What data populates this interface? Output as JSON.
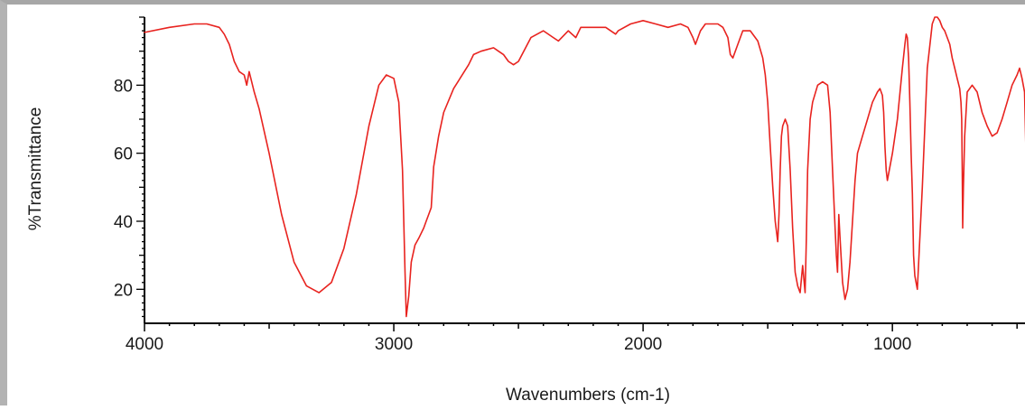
{
  "chart_data": {
    "type": "line",
    "title": "",
    "xlabel": "Wavenumbers (cm-1)",
    "ylabel": "%Transmittance",
    "xlim": [
      4000,
      450
    ],
    "ylim": [
      10,
      100
    ],
    "x_ticks": [
      4000,
      3000,
      2000,
      1000
    ],
    "y_ticks": [
      20,
      40,
      60,
      80
    ],
    "x_tick_labels": [
      "4000",
      "3000",
      "2000",
      "1000"
    ],
    "y_tick_labels": [
      "20",
      "40",
      "60",
      "80"
    ],
    "grid": false,
    "legend": "none",
    "line_color": "#e8231f",
    "series": [
      {
        "x": [
          4000,
          3900,
          3800,
          3750,
          3700,
          3680,
          3660,
          3640,
          3620,
          3600,
          3590,
          3580,
          3570,
          3560,
          3540,
          3500,
          3450,
          3400,
          3350,
          3300,
          3250,
          3200,
          3150,
          3100,
          3060,
          3030,
          3000,
          2980,
          2965,
          2955,
          2950,
          2940,
          2930,
          2915,
          2900,
          2880,
          2870,
          2860,
          2850,
          2840,
          2820,
          2800,
          2760,
          2700,
          2680,
          2650,
          2600,
          2580,
          2560,
          2540,
          2520,
          2500,
          2450,
          2400,
          2360,
          2340,
          2300,
          2270,
          2250,
          2200,
          2150,
          2110,
          2100,
          2050,
          2000,
          1950,
          1900,
          1850,
          1820,
          1800,
          1790,
          1770,
          1750,
          1700,
          1680,
          1660,
          1650,
          1640,
          1620,
          1600,
          1570,
          1540,
          1520,
          1510,
          1500,
          1490,
          1480,
          1470,
          1460,
          1455,
          1450,
          1445,
          1440,
          1430,
          1420,
          1410,
          1400,
          1390,
          1380,
          1370,
          1360,
          1350,
          1345,
          1340,
          1330,
          1320,
          1300,
          1280,
          1260,
          1250,
          1240,
          1230,
          1225,
          1220,
          1215,
          1210,
          1200,
          1190,
          1180,
          1170,
          1160,
          1150,
          1140,
          1120,
          1100,
          1080,
          1060,
          1050,
          1040,
          1035,
          1030,
          1025,
          1020,
          1000,
          980,
          960,
          950,
          945,
          940,
          935,
          930,
          925,
          920,
          915,
          910,
          900,
          880,
          860,
          840,
          830,
          820,
          810,
          800,
          790,
          780,
          770,
          760,
          750,
          740,
          730,
          725,
          722,
          720,
          718,
          715,
          710,
          700,
          680,
          660,
          640,
          620,
          600,
          580,
          560,
          540,
          520,
          500,
          490,
          480,
          470,
          465,
          460,
          455,
          450
        ],
        "y": [
          95.5,
          97,
          98,
          98,
          97,
          95,
          92,
          87,
          84,
          83,
          80,
          84,
          81,
          78,
          73,
          60,
          42,
          28,
          21,
          19,
          22,
          32,
          48,
          68,
          80,
          83,
          82,
          75,
          55,
          25,
          12,
          18,
          28,
          33,
          35,
          38,
          40,
          42,
          44,
          56,
          65,
          72,
          79,
          86,
          89,
          90,
          91,
          90,
          89,
          87,
          86,
          87,
          94,
          96,
          94,
          93,
          96,
          94,
          97,
          97,
          97,
          95,
          96,
          98,
          99,
          98,
          97,
          98,
          97,
          94,
          92,
          96,
          98,
          98,
          97,
          94,
          89,
          88,
          92,
          96,
          96,
          93,
          88,
          83,
          75,
          62,
          50,
          40,
          34,
          42,
          55,
          65,
          68,
          70,
          68,
          55,
          38,
          25,
          21,
          19,
          27,
          19,
          35,
          55,
          70,
          75,
          80,
          81,
          80,
          72,
          55,
          38,
          30,
          25,
          42,
          35,
          22,
          17,
          20,
          28,
          40,
          52,
          60,
          65,
          70,
          75,
          78,
          79,
          77,
          72,
          62,
          55,
          52,
          60,
          70,
          85,
          92,
          95,
          94,
          88,
          75,
          60,
          48,
          30,
          24,
          20,
          50,
          85,
          98,
          100,
          100,
          99,
          97,
          96,
          94,
          92,
          88,
          85,
          82,
          79,
          75,
          70,
          55,
          38,
          50,
          65,
          78,
          80,
          78,
          72,
          68,
          65,
          66,
          70,
          75,
          80,
          83,
          85,
          82,
          78,
          62,
          58,
          65,
          70
        ]
      }
    ]
  }
}
